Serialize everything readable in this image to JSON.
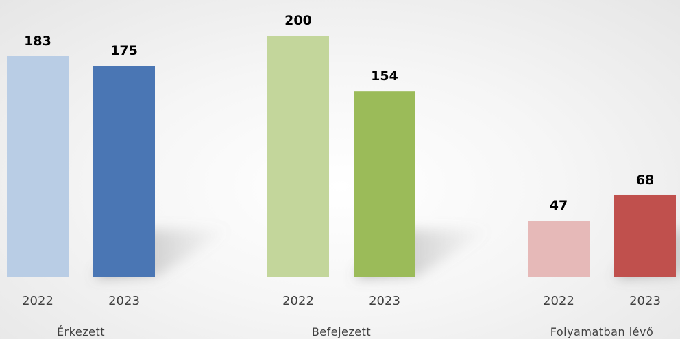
{
  "chart_data": {
    "type": "bar",
    "title": "",
    "xlabel": "",
    "ylabel": "",
    "ylim": [
      0,
      200
    ],
    "grid": false,
    "legend": "none",
    "groups": [
      {
        "label": "Érkezett",
        "bars": [
          {
            "year": "2022",
            "value": 183,
            "color": "#b9cde5"
          },
          {
            "year": "2023",
            "value": 175,
            "color": "#4a76b4"
          }
        ]
      },
      {
        "label": "Befejezett",
        "bars": [
          {
            "year": "2022",
            "value": 200,
            "color": "#c3d69b"
          },
          {
            "year": "2023",
            "value": 154,
            "color": "#9bbb59"
          }
        ]
      },
      {
        "label": "Folyamatban lévő",
        "bars": [
          {
            "year": "2022",
            "value": 47,
            "color": "#e6b9b8"
          },
          {
            "year": "2023",
            "value": 68,
            "color": "#c0504d"
          }
        ]
      }
    ]
  }
}
